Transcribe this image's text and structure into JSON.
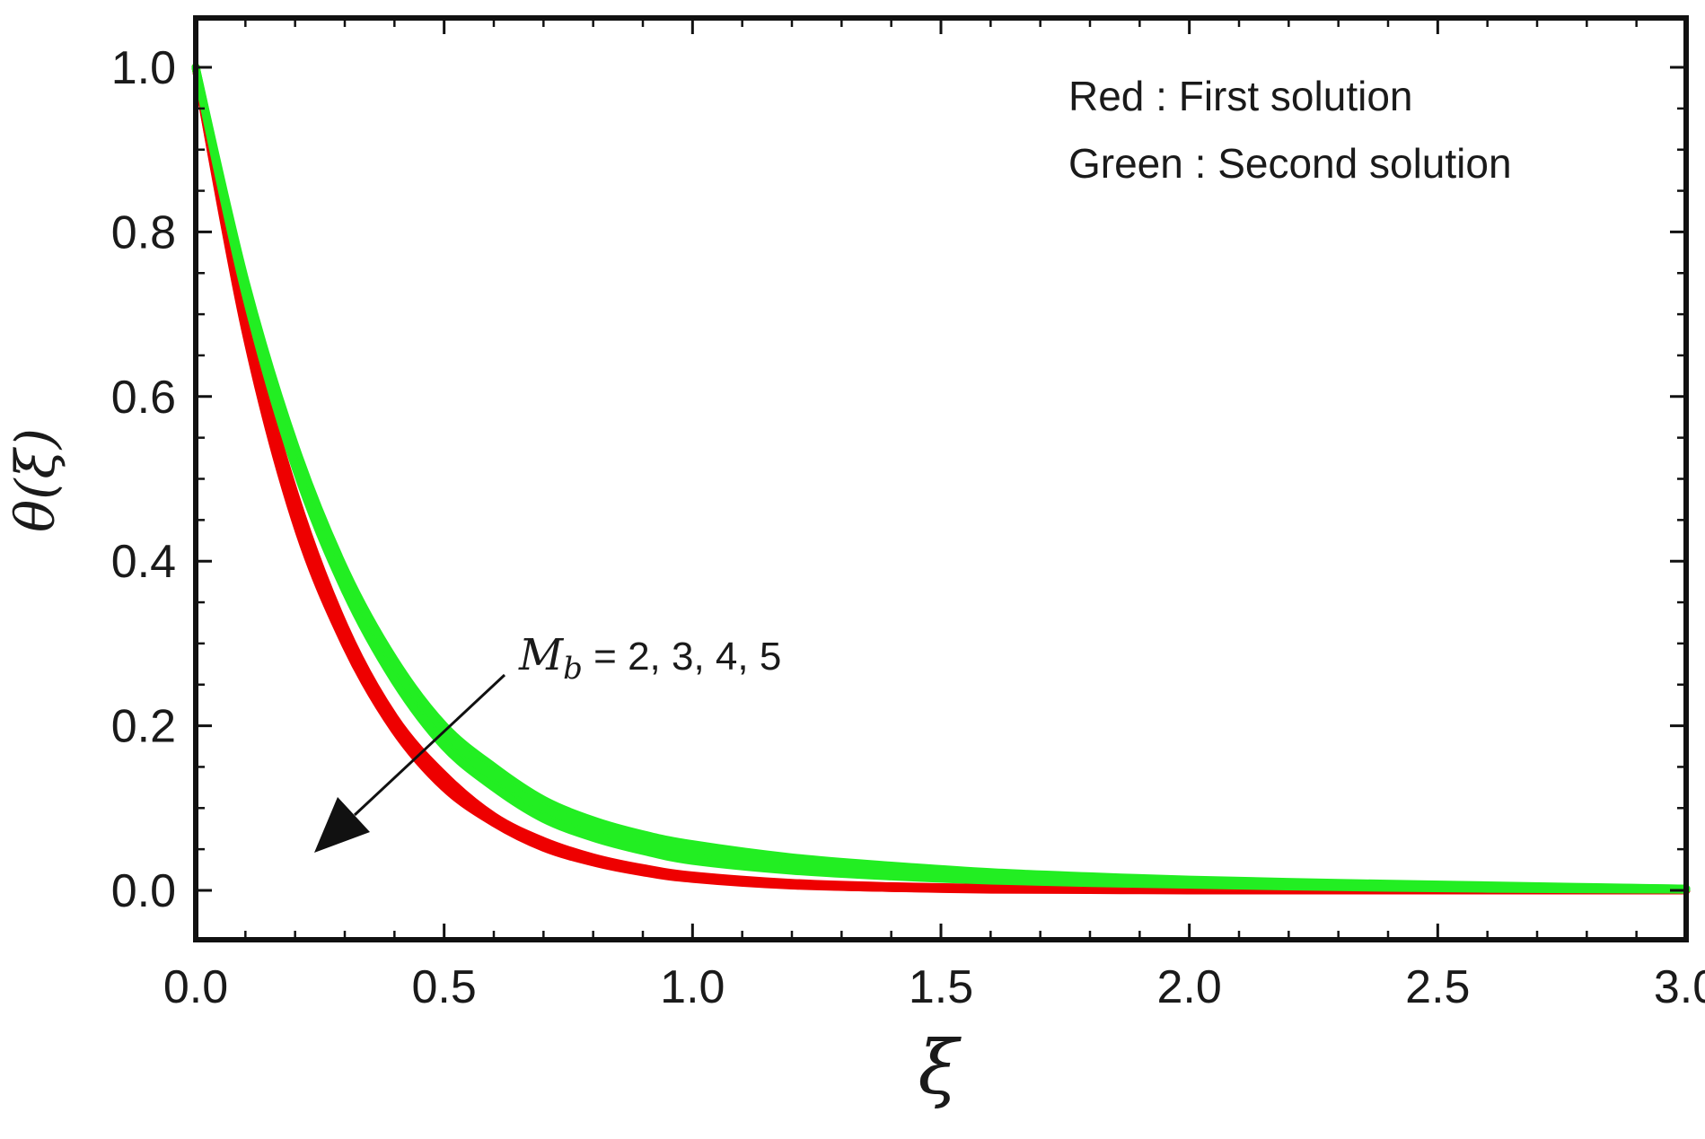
{
  "chart_data": {
    "type": "line",
    "title": "",
    "xlabel": "ξ",
    "ylabel": "θ(ξ)",
    "xlim": [
      0,
      3
    ],
    "ylim": [
      -0.06,
      1.06
    ],
    "xticks": [
      0.0,
      0.5,
      1.0,
      1.5,
      2.0,
      2.5,
      3.0
    ],
    "yticks": [
      0.0,
      0.2,
      0.4,
      0.6,
      0.8,
      1.0
    ],
    "x_tick_labels": [
      "0.0",
      "0.5",
      "1.0",
      "1.5",
      "2.0",
      "2.5",
      "3.0"
    ],
    "y_tick_labels": [
      "0.0",
      "0.2",
      "0.4",
      "0.6",
      "0.8",
      "1.0"
    ],
    "grid": false,
    "legend_text": {
      "line1_color": "Red",
      "line1_sep": " : ",
      "line1_desc": "First solution",
      "line2_color": "Green",
      "line2_sep": " : ",
      "line2_desc": "Second solution"
    },
    "annotation": {
      "variable": "M",
      "subscript": "b",
      "values_text": " = 2,  3,  4,  5"
    },
    "x": [
      0.0,
      0.1,
      0.2,
      0.3,
      0.4,
      0.5,
      0.6,
      0.7,
      0.8,
      0.9,
      1.0,
      1.2,
      1.4,
      1.6,
      1.8,
      2.0,
      2.3,
      2.6,
      3.0
    ],
    "series": [
      {
        "group": "First solution",
        "color": "#ee0000",
        "values": [
          1.0,
          0.7,
          0.48,
          0.32,
          0.21,
          0.14,
          0.09,
          0.06,
          0.04,
          0.027,
          0.018,
          0.009,
          0.005,
          0.003,
          0.002,
          0.001,
          0.001,
          0.0005,
          0.0
        ]
      },
      {
        "group": "First solution",
        "color": "#ee0000",
        "values": [
          1.0,
          0.69,
          0.47,
          0.31,
          0.205,
          0.135,
          0.088,
          0.058,
          0.038,
          0.025,
          0.017,
          0.008,
          0.004,
          0.002,
          0.001,
          0.001,
          0.0005,
          0.0,
          0.0
        ]
      },
      {
        "group": "First solution",
        "color": "#ee0000",
        "values": [
          1.0,
          0.685,
          0.46,
          0.305,
          0.2,
          0.13,
          0.085,
          0.055,
          0.036,
          0.024,
          0.016,
          0.007,
          0.003,
          0.002,
          0.001,
          0.0005,
          0.0,
          0.0,
          0.0
        ]
      },
      {
        "group": "First solution",
        "color": "#ee0000",
        "values": [
          1.0,
          0.68,
          0.45,
          0.3,
          0.195,
          0.125,
          0.082,
          0.052,
          0.034,
          0.022,
          0.014,
          0.006,
          0.003,
          0.001,
          0.0005,
          0.0,
          0.0,
          0.0,
          0.0
        ]
      },
      {
        "group": "Second solution",
        "color": "#22ee22",
        "values": [
          1.0,
          0.74,
          0.54,
          0.39,
          0.28,
          0.2,
          0.15,
          0.11,
          0.085,
          0.068,
          0.056,
          0.04,
          0.03,
          0.022,
          0.017,
          0.013,
          0.009,
          0.006,
          0.002
        ]
      },
      {
        "group": "Second solution",
        "color": "#22ee22",
        "values": [
          1.0,
          0.735,
          0.53,
          0.38,
          0.27,
          0.19,
          0.14,
          0.1,
          0.077,
          0.06,
          0.048,
          0.034,
          0.025,
          0.018,
          0.014,
          0.011,
          0.007,
          0.005,
          0.002
        ]
      },
      {
        "group": "Second solution",
        "color": "#22ee22",
        "values": [
          1.0,
          0.73,
          0.52,
          0.37,
          0.26,
          0.18,
          0.13,
          0.09,
          0.068,
          0.052,
          0.04,
          0.027,
          0.019,
          0.014,
          0.011,
          0.008,
          0.005,
          0.003,
          0.001
        ]
      },
      {
        "group": "Second solution",
        "color": "#22ee22",
        "values": [
          1.0,
          0.725,
          0.515,
          0.365,
          0.255,
          0.175,
          0.125,
          0.087,
          0.064,
          0.048,
          0.036,
          0.024,
          0.017,
          0.012,
          0.009,
          0.007,
          0.004,
          0.002,
          0.001
        ]
      }
    ]
  }
}
